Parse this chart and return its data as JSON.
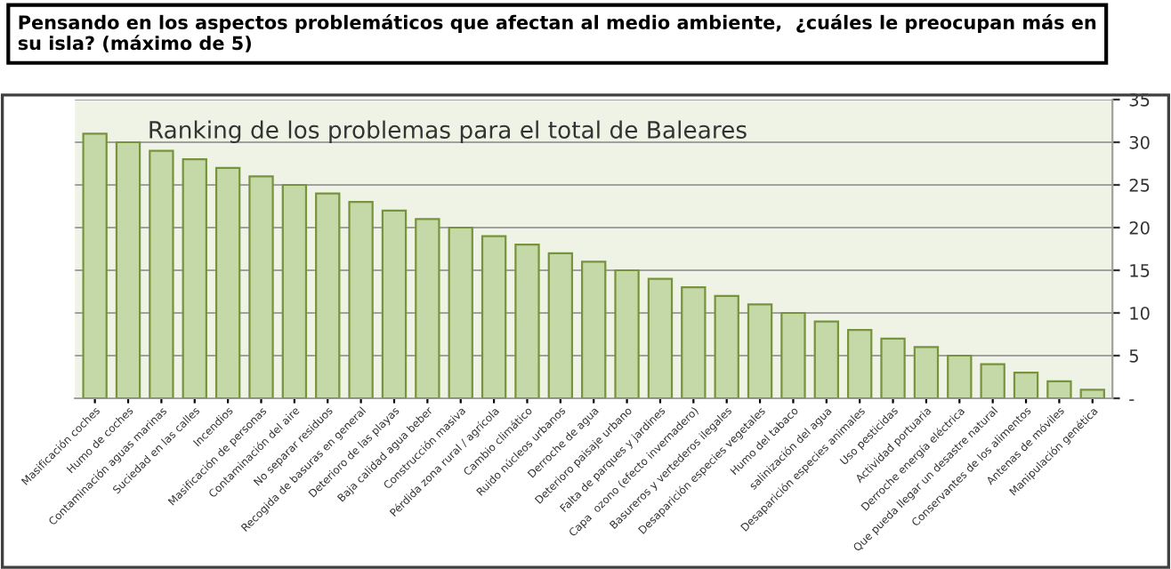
{
  "chart_data": {
    "type": "bar",
    "title": "Pensando en los aspectos problemáticos que afectan al medio ambiente,  ¿cuáles le preocupan más en su isla? (máximo de 5)",
    "subtitle": "Ranking de los problemas para el total de Baleares",
    "categories": [
      "Masificación coches",
      "Humo de coches",
      "Contaminación aguas marinas",
      "Suciedad en las calles",
      "Incendios",
      "Masificación de personas",
      "Contaminación del aire",
      "No separar residuos",
      "Recogida de basuras en general",
      "Deterioro de las playas",
      "Baja calidad agua beber",
      "Construcción masiva",
      "Pérdida zona rural / agrícola",
      "Cambio climático",
      "Ruido núcleos urbanos",
      "Derroche de agua",
      "Deterioro paisaje urbano",
      "Falta de parques y jardines",
      "Capa  ozono (efecto invernadero)",
      "Basureros y vertederos ilegales",
      "Desaparición especies vegetales",
      "Humo del tabaco",
      "salinización del agua",
      "Desaparición especies animales",
      "Uso pesticidas",
      "Actividad portuaria",
      "Derroche energía eléctrica",
      "Que pueda llegar un desastre natural",
      "Conservantes de los alimentos",
      "Antenas de móviles",
      "Manipulación genética"
    ],
    "values": [
      31,
      30,
      29,
      28,
      27,
      26,
      25,
      24,
      23,
      22,
      21,
      20,
      19,
      18,
      17,
      16,
      15,
      14,
      13,
      12,
      11,
      10,
      9,
      8,
      7,
      6,
      5,
      4,
      3,
      2,
      1
    ],
    "color": "#c5d9a8",
    "ylim": [
      0,
      35
    ],
    "yticks": [
      {
        "value": 0,
        "label": "-"
      },
      5,
      10,
      15,
      20,
      25,
      30,
      35
    ],
    "grid": "y"
  }
}
